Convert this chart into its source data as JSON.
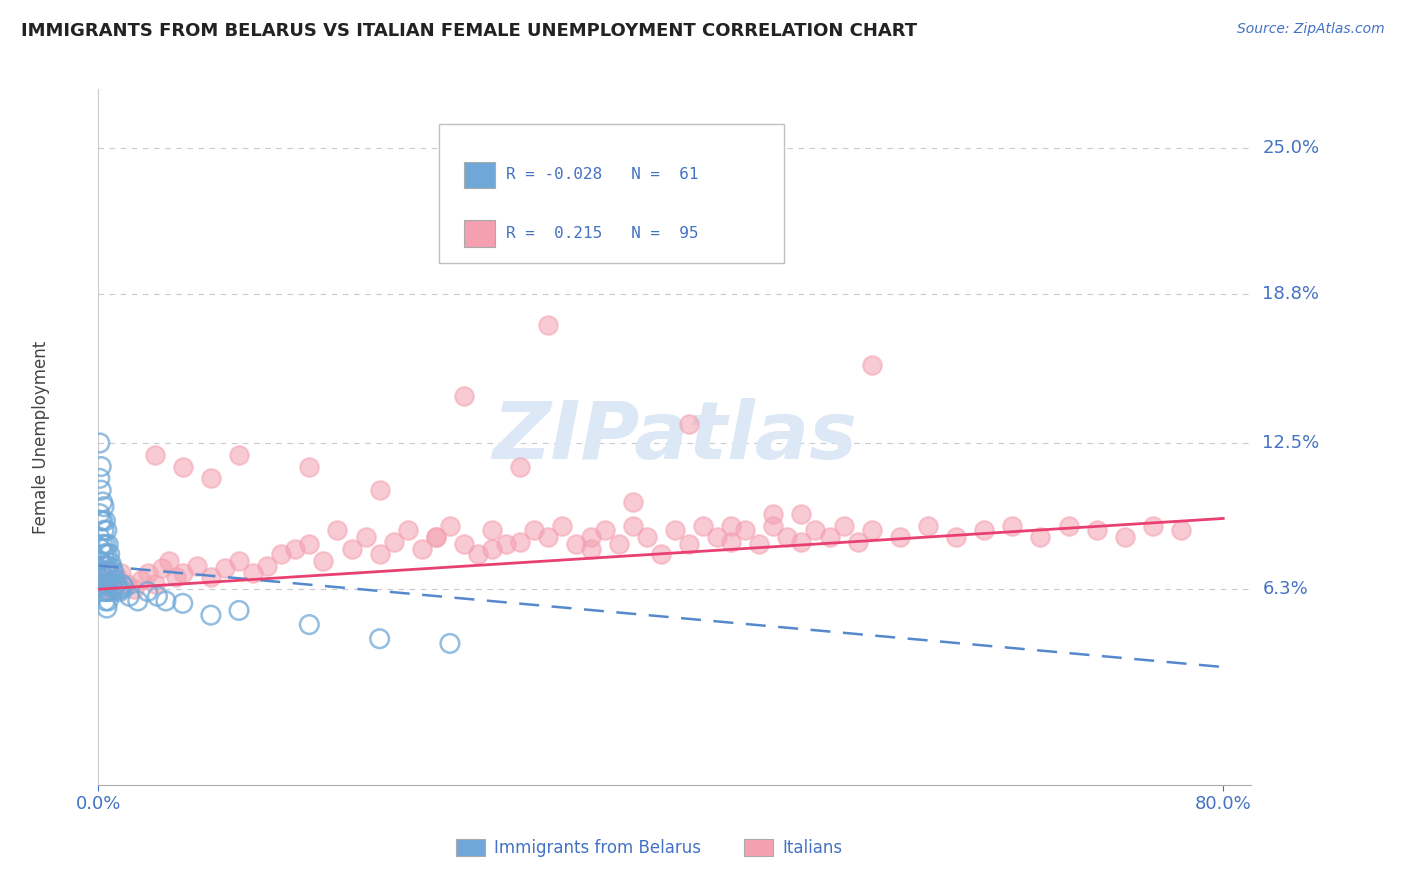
{
  "title": "IMMIGRANTS FROM BELARUS VS ITALIAN FEMALE UNEMPLOYMENT CORRELATION CHART",
  "source": "Source: ZipAtlas.com",
  "ylabel": "Female Unemployment",
  "y_tick_labels": [
    "6.3%",
    "12.5%",
    "18.8%",
    "25.0%"
  ],
  "y_tick_values": [
    0.063,
    0.125,
    0.188,
    0.25
  ],
  "xlim": [
    0.0,
    0.82
  ],
  "ylim": [
    -0.02,
    0.275
  ],
  "legend_r_blue": "R = -0.028",
  "legend_n_blue": "N =  61",
  "legend_r_pink": "R =  0.215",
  "legend_n_pink": "N =  95",
  "legend_label_blue": "Immigrants from Belarus",
  "legend_label_pink": "Italians",
  "blue_color": "#6fa8d8",
  "pink_color": "#f4a0b0",
  "pink_line_color": "#e84070",
  "blue_line_color": "#5588cc",
  "grid_color": "#c8c8d0",
  "background_color": "#ffffff",
  "blue_scatter_x": [
    0.001,
    0.001,
    0.001,
    0.001,
    0.001,
    0.002,
    0.002,
    0.002,
    0.002,
    0.002,
    0.003,
    0.003,
    0.003,
    0.003,
    0.003,
    0.004,
    0.004,
    0.004,
    0.004,
    0.004,
    0.005,
    0.005,
    0.005,
    0.005,
    0.005,
    0.006,
    0.006,
    0.006,
    0.006,
    0.006,
    0.007,
    0.007,
    0.007,
    0.007,
    0.008,
    0.008,
    0.008,
    0.009,
    0.009,
    0.01,
    0.01,
    0.011,
    0.011,
    0.012,
    0.013,
    0.014,
    0.015,
    0.016,
    0.017,
    0.018,
    0.022,
    0.028,
    0.035,
    0.042,
    0.048,
    0.06,
    0.08,
    0.1,
    0.15,
    0.2,
    0.25
  ],
  "blue_scatter_y": [
    0.125,
    0.11,
    0.095,
    0.085,
    0.075,
    0.115,
    0.105,
    0.092,
    0.08,
    0.07,
    0.1,
    0.092,
    0.082,
    0.073,
    0.064,
    0.098,
    0.088,
    0.078,
    0.068,
    0.062,
    0.092,
    0.082,
    0.073,
    0.065,
    0.058,
    0.088,
    0.078,
    0.07,
    0.062,
    0.055,
    0.082,
    0.073,
    0.065,
    0.058,
    0.078,
    0.07,
    0.062,
    0.074,
    0.066,
    0.072,
    0.064,
    0.07,
    0.063,
    0.067,
    0.065,
    0.063,
    0.062,
    0.063,
    0.065,
    0.064,
    0.06,
    0.058,
    0.062,
    0.06,
    0.058,
    0.057,
    0.052,
    0.054,
    0.048,
    0.042,
    0.04
  ],
  "pink_scatter_x": [
    0.001,
    0.002,
    0.004,
    0.006,
    0.008,
    0.01,
    0.013,
    0.016,
    0.02,
    0.025,
    0.03,
    0.035,
    0.04,
    0.045,
    0.05,
    0.055,
    0.06,
    0.07,
    0.08,
    0.09,
    0.1,
    0.11,
    0.12,
    0.13,
    0.14,
    0.15,
    0.16,
    0.17,
    0.18,
    0.19,
    0.2,
    0.21,
    0.22,
    0.23,
    0.24,
    0.25,
    0.26,
    0.27,
    0.28,
    0.29,
    0.3,
    0.31,
    0.32,
    0.33,
    0.34,
    0.35,
    0.36,
    0.37,
    0.38,
    0.39,
    0.4,
    0.41,
    0.42,
    0.43,
    0.44,
    0.45,
    0.46,
    0.47,
    0.48,
    0.49,
    0.5,
    0.51,
    0.52,
    0.53,
    0.54,
    0.55,
    0.57,
    0.59,
    0.61,
    0.63,
    0.65,
    0.67,
    0.69,
    0.71,
    0.73,
    0.75,
    0.77,
    0.04,
    0.38,
    0.48,
    0.32,
    0.55,
    0.26,
    0.42,
    0.3,
    0.2,
    0.15,
    0.1,
    0.08,
    0.06,
    0.35,
    0.45,
    0.5,
    0.28,
    0.24
  ],
  "pink_scatter_y": [
    0.072,
    0.068,
    0.065,
    0.063,
    0.067,
    0.063,
    0.068,
    0.07,
    0.065,
    0.063,
    0.067,
    0.07,
    0.065,
    0.072,
    0.075,
    0.068,
    0.07,
    0.073,
    0.068,
    0.072,
    0.075,
    0.07,
    0.073,
    0.078,
    0.08,
    0.082,
    0.075,
    0.088,
    0.08,
    0.085,
    0.078,
    0.083,
    0.088,
    0.08,
    0.085,
    0.09,
    0.082,
    0.078,
    0.088,
    0.082,
    0.083,
    0.088,
    0.085,
    0.09,
    0.082,
    0.08,
    0.088,
    0.082,
    0.09,
    0.085,
    0.078,
    0.088,
    0.082,
    0.09,
    0.085,
    0.083,
    0.088,
    0.082,
    0.09,
    0.085,
    0.083,
    0.088,
    0.085,
    0.09,
    0.083,
    0.088,
    0.085,
    0.09,
    0.085,
    0.088,
    0.09,
    0.085,
    0.09,
    0.088,
    0.085,
    0.09,
    0.088,
    0.12,
    0.1,
    0.095,
    0.175,
    0.158,
    0.145,
    0.133,
    0.115,
    0.105,
    0.115,
    0.12,
    0.11,
    0.115,
    0.085,
    0.09,
    0.095,
    0.08,
    0.085
  ]
}
